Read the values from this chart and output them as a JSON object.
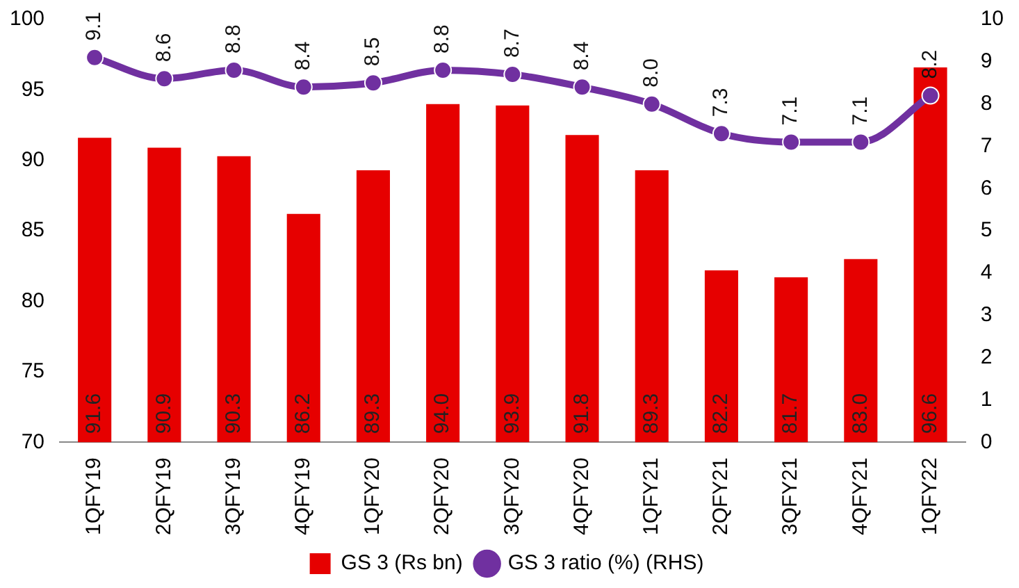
{
  "chart_data": {
    "type": "bar",
    "categories": [
      "1QFY19",
      "2QFY19",
      "3QFY19",
      "4QFY19",
      "1QFY20",
      "2QFY20",
      "3QFY20",
      "4QFY20",
      "1QFY21",
      "2QFY21",
      "3QFY21",
      "4QFY21",
      "1QFY22"
    ],
    "series": [
      {
        "name": "GS 3 (Rs bn)",
        "color": "#e60000",
        "values": [
          91.6,
          90.9,
          90.3,
          86.2,
          89.3,
          94.0,
          93.9,
          91.8,
          89.3,
          82.2,
          81.7,
          83.0,
          96.6
        ],
        "value_labels": [
          "91.6",
          "90.9",
          "90.3",
          "86.2",
          "89.3",
          "94.0",
          "93.9",
          "91.8",
          "89.3",
          "82.2",
          "81.7",
          "83.0",
          "96.6"
        ]
      },
      {
        "name": "GS 3 ratio (%) (RHS)",
        "type": "line",
        "axis": "y2",
        "color": "#7030a0",
        "values": [
          9.1,
          8.6,
          8.8,
          8.4,
          8.5,
          8.8,
          8.7,
          8.4,
          8.0,
          7.3,
          7.1,
          7.1,
          8.2
        ],
        "value_labels": [
          "9.1",
          "8.6",
          "8.8",
          "8.4",
          "8.5",
          "8.8",
          "8.7",
          "8.4",
          "8.0",
          "7.3",
          "7.1",
          "7.1",
          "8.2"
        ]
      }
    ],
    "ylim": [
      70,
      100
    ],
    "yticks": [
      70,
      75,
      80,
      85,
      90,
      95,
      100
    ],
    "y2lim": [
      0,
      10
    ],
    "y2ticks": [
      0,
      1,
      2,
      3,
      4,
      5,
      6,
      7,
      8,
      9,
      10
    ],
    "grid": false,
    "legend": "bottom",
    "marker": "circle",
    "line_style": "solid"
  }
}
